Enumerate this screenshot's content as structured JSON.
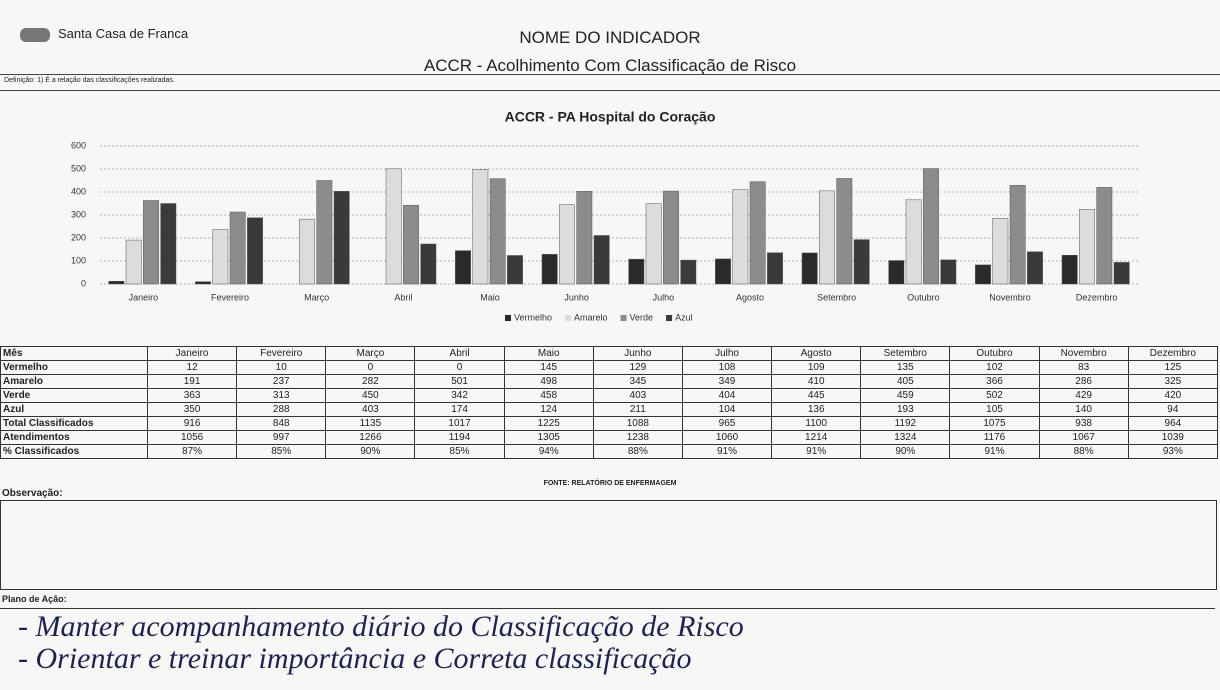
{
  "header": {
    "company": "Santa Casa de Franca",
    "title": "NOME DO INDICADOR",
    "subtitle": "ACCR - Acolhimento Com Classificação de Risco",
    "definition": "Definição: 1) É a relação das classificações realizadas."
  },
  "chart_data": {
    "type": "bar",
    "title": "ACCR - PA Hospital do Coração",
    "categories": [
      "Janeiro",
      "Fevereiro",
      "Março",
      "Abril",
      "Maio",
      "Junho",
      "Julho",
      "Agosto",
      "Setembro",
      "Outubro",
      "Novembro",
      "Dezembro"
    ],
    "series": [
      {
        "name": "Vermelho",
        "color": "#2a2a2a",
        "values": [
          12,
          10,
          0,
          0,
          145,
          129,
          108,
          109,
          135,
          102,
          83,
          125
        ]
      },
      {
        "name": "Amarelo",
        "color": "#dcdcdc",
        "values": [
          191,
          237,
          282,
          501,
          498,
          345,
          349,
          410,
          405,
          366,
          286,
          325
        ]
      },
      {
        "name": "Verde",
        "color": "#8c8c8c",
        "values": [
          363,
          313,
          450,
          342,
          458,
          403,
          404,
          445,
          459,
          502,
          429,
          420
        ]
      },
      {
        "name": "Azul",
        "color": "#3a3a3a",
        "values": [
          350,
          288,
          403,
          174,
          124,
          211,
          104,
          136,
          193,
          105,
          140,
          94
        ]
      }
    ],
    "ylim": [
      0,
      600
    ],
    "yticks": [
      0,
      100,
      200,
      300,
      400,
      500,
      600
    ],
    "grid": true,
    "legend": "bottom"
  },
  "table": {
    "header": [
      "Mês",
      "Janeiro",
      "Fevereiro",
      "Março",
      "Abril",
      "Maio",
      "Junho",
      "Julho",
      "Agosto",
      "Setembro",
      "Outubro",
      "Novembro",
      "Dezembro"
    ],
    "rows": [
      [
        "Vermelho",
        12,
        10,
        0,
        0,
        145,
        129,
        108,
        109,
        135,
        102,
        83,
        125
      ],
      [
        "Amarelo",
        191,
        237,
        282,
        501,
        498,
        345,
        349,
        410,
        405,
        366,
        286,
        325
      ],
      [
        "Verde",
        363,
        313,
        450,
        342,
        458,
        403,
        404,
        445,
        459,
        502,
        429,
        420
      ],
      [
        "Azul",
        350,
        288,
        403,
        174,
        124,
        211,
        104,
        136,
        193,
        105,
        140,
        94
      ],
      [
        "Total Classificados",
        916,
        848,
        1135,
        1017,
        1225,
        1088,
        965,
        1100,
        1192,
        1075,
        938,
        964
      ],
      [
        "Atendimentos",
        1056,
        997,
        1266,
        1194,
        1305,
        1238,
        1060,
        1214,
        1324,
        1176,
        1067,
        1039
      ],
      [
        "% Classificados",
        "87%",
        "85%",
        "90%",
        "85%",
        "94%",
        "88%",
        "91%",
        "91%",
        "90%",
        "91%",
        "88%",
        "93%"
      ]
    ]
  },
  "source": "FONTE: RELATÓRIO DE ENFERMAGEM",
  "observation_label": "Observação:",
  "action_label": "Plano de Ação:",
  "action_lines": [
    "- Manter acompanhamento diário do Classificação de Risco",
    "- Orientar e treinar importância e Correta classificação"
  ]
}
